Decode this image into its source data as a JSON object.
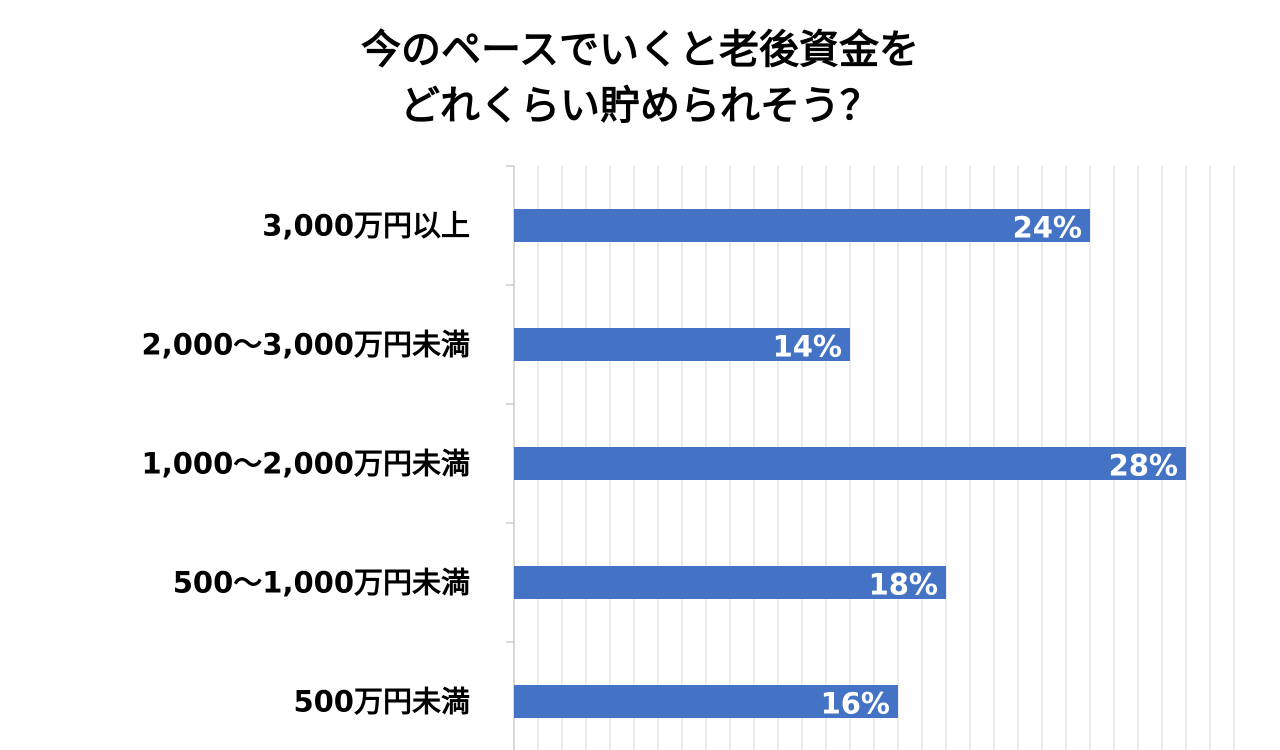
{
  "chart_data": {
    "type": "bar",
    "orientation": "horizontal",
    "title_lines": [
      "今のペースでいくと老後資金を",
      "どれくらい貯められそう？"
    ],
    "categories": [
      "3,000万円以上",
      "2,000〜3,000万円未満",
      "1,000〜2,000万円未満",
      "500〜1,000万円未満",
      "500万円未満"
    ],
    "values": [
      24,
      14,
      28,
      18,
      16
    ],
    "value_labels": [
      "24%",
      "14%",
      "28%",
      "18%",
      "16%"
    ],
    "unit": "%",
    "xlim": [
      0,
      30
    ],
    "grid": true,
    "legend": "none",
    "colors": {
      "bar": "#4472C4",
      "grid": "#D9D9D9",
      "axis": "#BFBFBF",
      "data_label": "#FFFFFF",
      "text": "#000000"
    }
  }
}
